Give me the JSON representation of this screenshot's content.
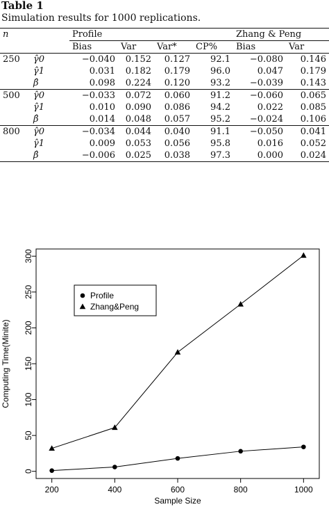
{
  "caption": {
    "label": "Table 1",
    "title": "Simulation results for 1000 replications."
  },
  "table": {
    "n_header": "n",
    "group1": "Profile",
    "group2": "Zhang & Peng",
    "subheaders": [
      "Bias",
      "Var",
      "Var*",
      "CP%",
      "Bias",
      "Var"
    ],
    "blocks": [
      {
        "n": "250",
        "rows": [
          {
            "param": "γ̂0",
            "vals": [
              "−0.040",
              "0.152",
              "0.127",
              "92.1",
              "−0.080",
              "0.146"
            ]
          },
          {
            "param": "γ̂1",
            "vals": [
              "0.031",
              "0.182",
              "0.179",
              "96.0",
              "0.047",
              "0.179"
            ]
          },
          {
            "param": "β̂",
            "vals": [
              "0.098",
              "0.224",
              "0.120",
              "93.2",
              "−0.039",
              "0.143"
            ]
          }
        ]
      },
      {
        "n": "500",
        "rows": [
          {
            "param": "γ̂0",
            "vals": [
              "−0.033",
              "0.072",
              "0.060",
              "91.2",
              "−0.060",
              "0.065"
            ]
          },
          {
            "param": "γ̂1",
            "vals": [
              "0.010",
              "0.090",
              "0.086",
              "94.2",
              "0.022",
              "0.085"
            ]
          },
          {
            "param": "β̂",
            "vals": [
              "0.014",
              "0.048",
              "0.057",
              "95.2",
              "−0.024",
              "0.106"
            ]
          }
        ]
      },
      {
        "n": "800",
        "rows": [
          {
            "param": "γ̂0",
            "vals": [
              "−0.034",
              "0.044",
              "0.040",
              "91.1",
              "−0.050",
              "0.041"
            ]
          },
          {
            "param": "γ̂1",
            "vals": [
              "0.009",
              "0.053",
              "0.056",
              "95.8",
              "0.016",
              "0.052"
            ]
          },
          {
            "param": "β̂",
            "vals": [
              "−0.006",
              "0.025",
              "0.038",
              "97.3",
              "0.000",
              "0.024"
            ]
          }
        ]
      }
    ]
  },
  "chart_data": {
    "type": "line",
    "x": [
      200,
      400,
      600,
      800,
      1000
    ],
    "xticks": [
      "200",
      "400",
      "600",
      "800",
      "1000"
    ],
    "yticks": [
      "0",
      "50",
      "100",
      "150",
      "200",
      "250",
      "300"
    ],
    "xlabel": "Sample Size",
    "ylabel": "Computing Time(Minite)",
    "xlim": [
      150,
      1050
    ],
    "ylim": [
      -10,
      310
    ],
    "grid": false,
    "legend_position": "upper-left",
    "series": [
      {
        "name": "Profile",
        "marker": "circle",
        "values": [
          1,
          6,
          18,
          28,
          34
        ]
      },
      {
        "name": "Zhang&Peng",
        "marker": "triangle",
        "values": [
          32,
          61,
          166,
          233,
          301
        ]
      }
    ]
  }
}
